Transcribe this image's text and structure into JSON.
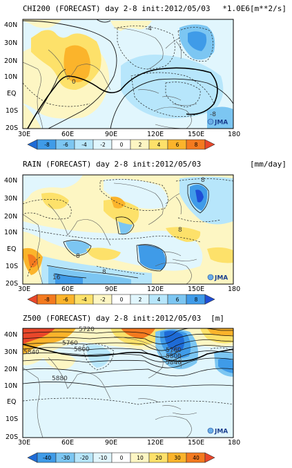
{
  "panels": [
    {
      "id": "chi200",
      "title": "CHI200 (FORECAST) day 2-8 init:2012/05/03",
      "unit": "*1.0E6[m**2/s]",
      "colorbar": {
        "labels": [
          "-8",
          "-6",
          "-4",
          "-2",
          "0",
          "2",
          "4",
          "6",
          "8"
        ],
        "colors": [
          "#1e6bd6",
          "#3f9be8",
          "#7cc6f2",
          "#b7e6fb",
          "#e1f6fd",
          "#fdf6c3",
          "#fde16a",
          "#fbb42b",
          "#f47a1f",
          "#e9472a"
        ]
      },
      "contour_labels": [
        "-4",
        "0",
        "-8"
      ]
    },
    {
      "id": "rain",
      "title": "RAIN (FORECAST) day 2-8 init:2012/05/03",
      "unit": "[mm/day]",
      "colorbar": {
        "labels": [
          "-8",
          "-6",
          "-4",
          "-2",
          "0",
          "2",
          "4",
          "6",
          "8"
        ],
        "colors": [
          "#e9472a",
          "#f47a1f",
          "#fbb42b",
          "#fde16a",
          "#fdf6c3",
          "#e1f6fd",
          "#b7e6fb",
          "#7cc6f2",
          "#3f9be8",
          "#1e4ed6"
        ]
      },
      "contour_labels": [
        "8",
        "8",
        "8",
        "8",
        "16"
      ]
    },
    {
      "id": "z500",
      "title": "Z500 (FORECAST) day 2-8 init:2012/05/03",
      "unit": "[m]",
      "colorbar": {
        "labels": [
          "-40",
          "-30",
          "-20",
          "-10",
          "0",
          "10",
          "20",
          "30",
          "40"
        ],
        "colors": [
          "#1e6bd6",
          "#3f9be8",
          "#7cc6f2",
          "#b7e6fb",
          "#e1f6fd",
          "#fdf6c3",
          "#fde16a",
          "#fbb42b",
          "#f47a1f",
          "#e9472a"
        ]
      },
      "contour_labels": [
        "5720",
        "5760",
        "5840",
        "5800",
        "5880",
        "5760",
        "5800",
        "5840"
      ]
    }
  ],
  "axes": {
    "y_ticks": [
      "40N",
      "30N",
      "20N",
      "10N",
      "EQ",
      "10S",
      "20S"
    ],
    "x_ticks": [
      "30E",
      "60E",
      "90E",
      "120E",
      "150E",
      "180"
    ]
  },
  "logo": "JMA",
  "colors": {
    "pale_blue": "#e1f6fd",
    "land_outline": "#555555"
  }
}
